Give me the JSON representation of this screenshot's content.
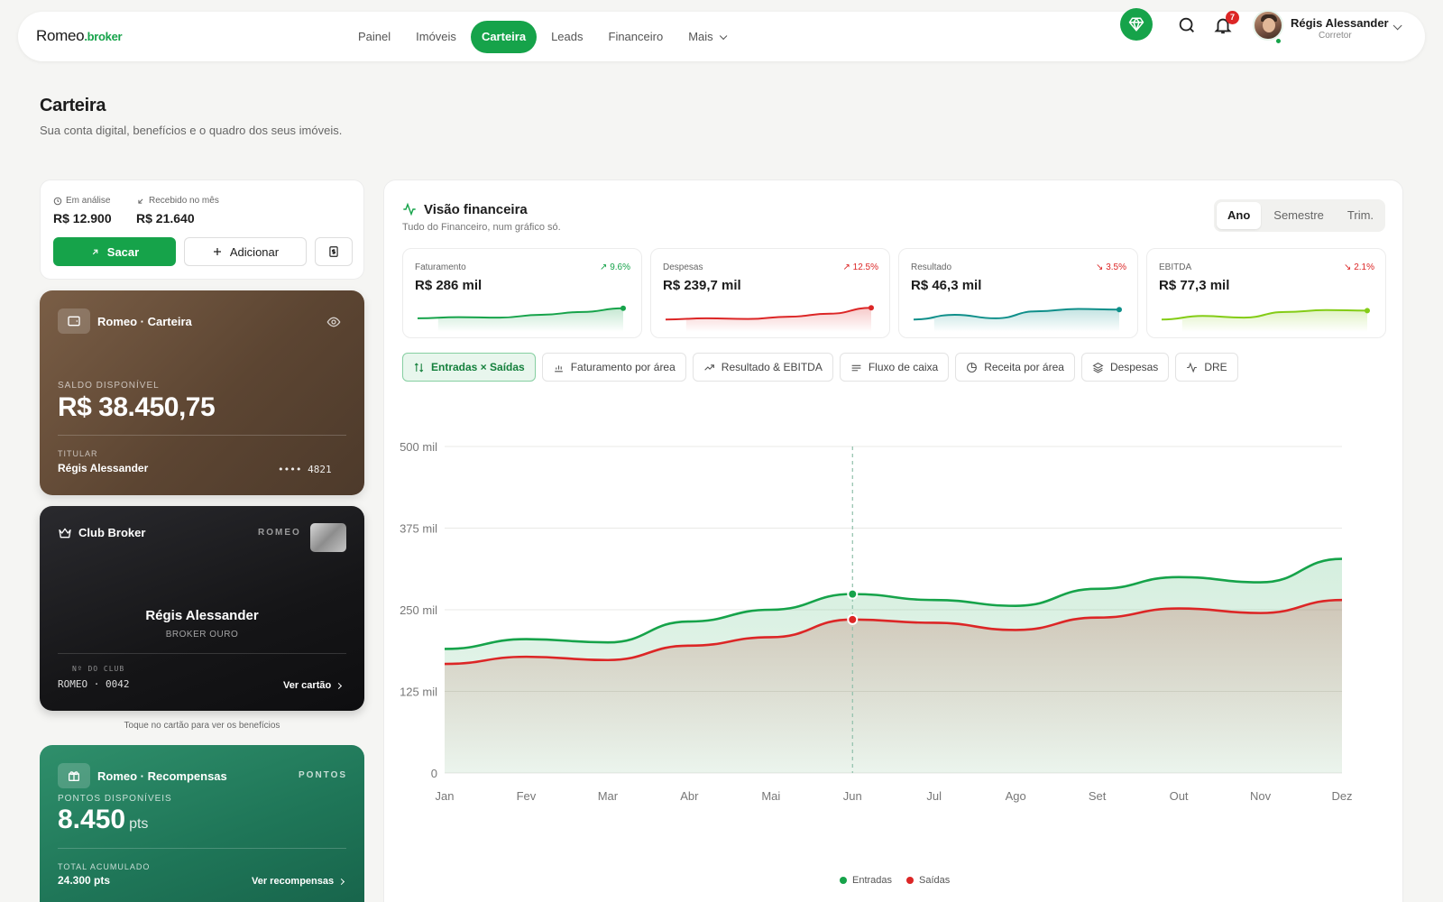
{
  "brand": {
    "name": "Romeo",
    "suffix": ".broker"
  },
  "nav": {
    "links": [
      "Painel",
      "Imóveis",
      "Carteira",
      "Leads",
      "Financeiro",
      "Mais"
    ],
    "active": "Carteira",
    "notifications": "7",
    "user_name": "Régis Alessander",
    "user_role": "Corretor"
  },
  "page": {
    "title": "Carteira",
    "subtitle": "Sua conta digital, benefícios e o quadro dos seus imóveis."
  },
  "balance": {
    "analysis_label": "Em análise",
    "analysis_value": "R$ 12.900",
    "received_label": "Recebido no mês",
    "received_value": "R$ 21.640",
    "withdraw_label": "Sacar",
    "add_label": "Adicionar"
  },
  "wallet_card": {
    "title": "Romeo · Carteira",
    "balance_label": "SALDO DISPONÍVEL",
    "balance": "R$ 38.450,75",
    "holder_label": "TITULAR",
    "holder": "Régis Alessander",
    "number": "•••• 4821"
  },
  "club_card": {
    "title": "Club Broker",
    "brand": "ROMEO",
    "name": "Régis Alessander",
    "tier": "BROKER OURO",
    "number_label": "Nº DO CLUB",
    "number": "ROMEO · 0042",
    "link": "Ver cartão",
    "hint": "Toque no cartão para ver os benefícios"
  },
  "rewards_card": {
    "title": "Romeo · Recompensas",
    "tag": "PONTOS",
    "points_label": "PONTOS DISPONÍVEIS",
    "points": "8.450",
    "points_unit": "pts",
    "total_label": "TOTAL ACUMULADO",
    "total": "24.300 pts",
    "link": "Ver recompensas"
  },
  "finance": {
    "title": "Visão financeira",
    "subtitle": "Tudo do Financeiro, num gráfico só.",
    "periods": [
      "Ano",
      "Semestre",
      "Trim."
    ],
    "active_period": "Ano",
    "kpis": [
      {
        "label": "Faturamento",
        "change": "9.6%",
        "trend": "up",
        "value": "R$ 286 mil",
        "color": "#16a34a",
        "spark": [
          0.35,
          0.4,
          0.38,
          0.5,
          0.62,
          0.78
        ]
      },
      {
        "label": "Despesas",
        "change": "12.5%",
        "trend": "up-bad",
        "value": "R$ 239,7 mil",
        "color": "#dc2626",
        "spark": [
          0.3,
          0.35,
          0.32,
          0.42,
          0.55,
          0.8
        ]
      },
      {
        "label": "Resultado",
        "change": "3.5%",
        "trend": "down",
        "value": "R$ 46,3 mil",
        "color": "#0f8f8a",
        "spark": [
          0.3,
          0.5,
          0.35,
          0.65,
          0.75,
          0.72
        ]
      },
      {
        "label": "EBITDA",
        "change": "2.1%",
        "trend": "down",
        "value": "R$ 77,3 mil",
        "color": "#84cc16",
        "spark": [
          0.3,
          0.45,
          0.38,
          0.62,
          0.7,
          0.68
        ]
      }
    ],
    "tabs": [
      "Entradas × Saídas",
      "Faturamento por área",
      "Resultado & EBITDA",
      "Fluxo de caixa",
      "Receita por área",
      "Despesas",
      "DRE"
    ],
    "active_tab": "Entradas × Saídas"
  },
  "chart_data": {
    "type": "area",
    "categories": [
      "Jan",
      "Fev",
      "Mar",
      "Abr",
      "Mai",
      "Jun",
      "Jul",
      "Ago",
      "Set",
      "Out",
      "Nov",
      "Dez"
    ],
    "y_ticks": [
      "0",
      "125 mil",
      "250 mil",
      "375 mil",
      "500 mil"
    ],
    "ylim": [
      0,
      500
    ],
    "highlight": "Jun",
    "series": [
      {
        "name": "Entradas",
        "color": "#16a34a",
        "values": [
          190,
          205,
          200,
          232,
          250,
          274,
          265,
          256,
          282,
          300,
          292,
          328
        ]
      },
      {
        "name": "Saídas",
        "color": "#dc2626",
        "values": [
          167,
          178,
          173,
          195,
          208,
          235,
          230,
          219,
          238,
          252,
          245,
          265
        ]
      }
    ],
    "legend": "bottom-center"
  }
}
